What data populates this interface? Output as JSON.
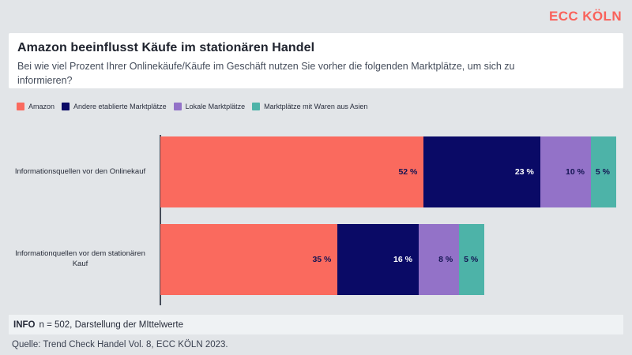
{
  "brand": {
    "logo": "ECC KÖLN",
    "color": "#F9625B"
  },
  "header": {
    "title": "Amazon beeinflusst Käufe im stationären Handel",
    "subtitle": "Bei wie viel Prozent Ihrer Onlinekäufe/Käufe im Geschäft nutzen Sie vorher die folgenden Marktplätze, um sich zu informieren?"
  },
  "chart_data": {
    "type": "bar",
    "orientation": "horizontal",
    "stacked": true,
    "title": "Amazon beeinflusst Käufe im stationären Handel",
    "subtitle": "Bei wie viel Prozent Ihrer Onlinekäufe/Käufe im Geschäft nutzen Sie vorher die folgenden Marktplätze, um sich zu informieren?",
    "categories": [
      "Informationsquellen vor den Onlinekauf",
      "Informationquellen vor dem stationären Kauf"
    ],
    "series": [
      {
        "name": "Amazon",
        "color": "#FA6A5E",
        "value_text_color": "#141452",
        "values": [
          52,
          35
        ]
      },
      {
        "name": "Andere etablierte Marktplätze",
        "color": "#0A0A66",
        "value_text_color": "#FFFFFF",
        "values": [
          23,
          16
        ]
      },
      {
        "name": "Lokale Marktplätze",
        "color": "#9372C8",
        "value_text_color": "#141452",
        "values": [
          10,
          8
        ]
      },
      {
        "name": "Marktplätze mit Waren aus Asien",
        "color": "#4DB3A8",
        "value_text_color": "#141452",
        "values": [
          5,
          5
        ]
      }
    ],
    "value_suffix": " %",
    "xlabel": "",
    "ylabel": "",
    "xlim": [
      0,
      90
    ],
    "grid": false,
    "legend_position": "top-left"
  },
  "footer": {
    "info_label": "INFO",
    "info_text": "n = 502, Darstellung der MIttelwerte",
    "source": "Quelle: Trend Check Handel Vol. 8, ECC KÖLN 2023."
  }
}
